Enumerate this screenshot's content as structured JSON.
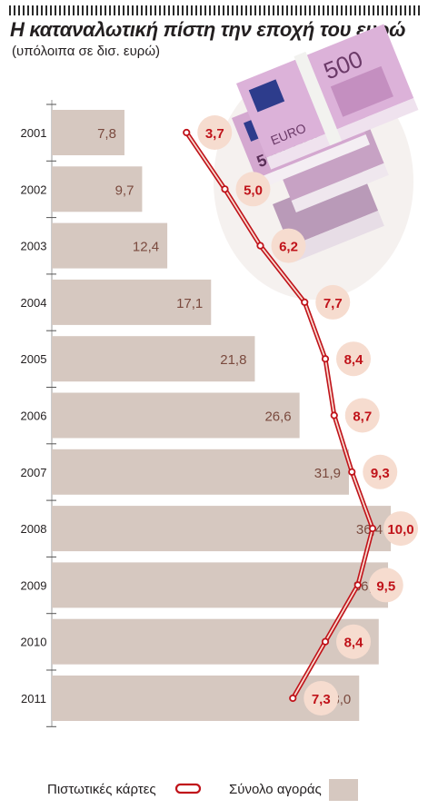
{
  "title": "Η καταναλωτική πίστη την εποχή του ευρώ",
  "subtitle": "(υπόλοιπα σε δισ. ευρώ)",
  "colors": {
    "bar": "#d6c8c0",
    "line": "#c0131a",
    "bubble": "#f6dccf",
    "bar_label": "#7a4a3e"
  },
  "chart_data": {
    "type": "bar",
    "orientation": "horizontal",
    "categories": [
      "2001",
      "2002",
      "2003",
      "2004",
      "2005",
      "2006",
      "2007",
      "2008",
      "2009",
      "2010",
      "2011"
    ],
    "series": [
      {
        "name": "Σύνολο αγοράς",
        "type": "bar",
        "values": [
          7.8,
          9.7,
          12.4,
          17.1,
          21.8,
          26.6,
          31.9,
          36.4,
          36.1,
          35.1,
          33.0
        ],
        "labels": [
          "7,8",
          "9,7",
          "12,4",
          "17,1",
          "21,8",
          "26,6",
          "31,9",
          "36,4",
          "36,1",
          "35,1",
          "33,0"
        ]
      },
      {
        "name": "Πιστωτικές κάρτες",
        "type": "line",
        "values": [
          3.7,
          5.0,
          6.2,
          7.7,
          8.4,
          8.7,
          9.3,
          10.0,
          9.5,
          8.4,
          7.3
        ],
        "labels": [
          "3,7",
          "5,0",
          "6,2",
          "7,7",
          "8,4",
          "8,7",
          "9,3",
          "10,0",
          "9,5",
          "8,4",
          "7,3"
        ]
      }
    ],
    "legend": [
      {
        "label": "Πιστωτικές κάρτες",
        "kind": "line"
      },
      {
        "label": "Σύνολο αγοράς",
        "kind": "bar"
      }
    ],
    "legend_position": "bottom"
  },
  "illustration": {
    "name": "euro-banknote-stack",
    "texts": [
      "500",
      "EURO",
      "500EURO"
    ]
  }
}
